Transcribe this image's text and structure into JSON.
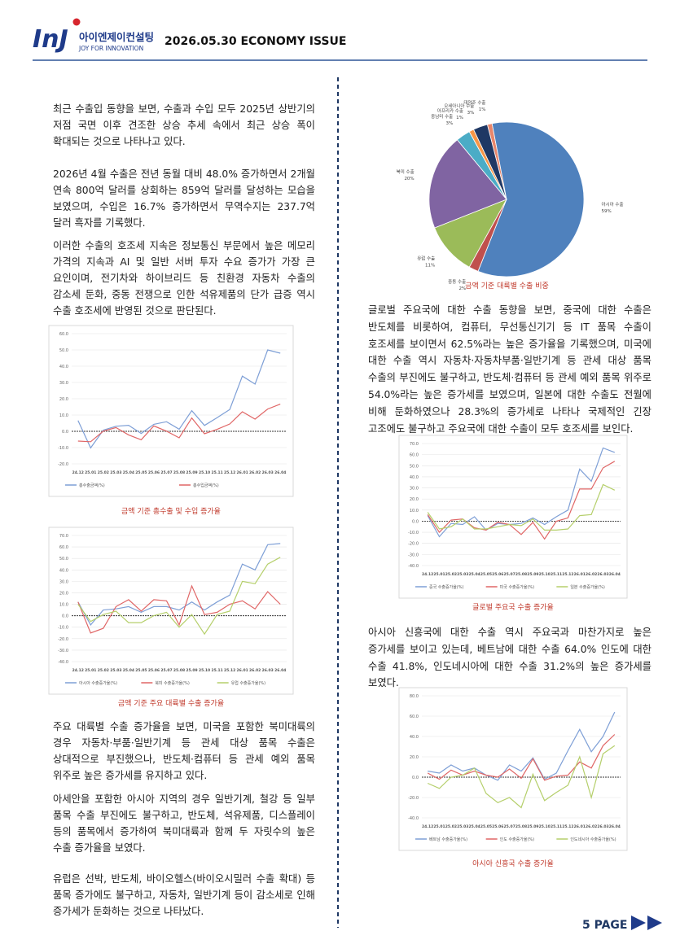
{
  "header": {
    "logo": "InJ",
    "company": "아이엔제이컨설팅",
    "slogan": "JOY FOR INNOVATION",
    "issue": "2026.05.30 ECONOMY ISSUE"
  },
  "left": {
    "paragraphs": [
      "최근 수출입 동향을 보면, 수출과 수입 모두 2025년 상반기의 저점 국면 이후 견조한 상승 추세 속에서 최근 상승 폭이 확대되는 것으로 나타나고 있다.",
      "2026년 4월 수출은 전년 동월 대비 48.0% 증가하면서 2개월 연속 800억 달러를 상회하는 859억 달러를 달성하는 모습을 보였으며, 수입은 16.7% 증가하면서 무역수지는 237.7억 달러 흑자를 기록했다.",
      "이러한 수출의 호조세 지속은 정보통신 부문에서 높은 메모리 가격의 지속과 AI 및 일반 서버 투자 수요 증가가 가장 큰 요인이며, 전기차와 하이브리드 등 친환경 자동차 수출의 감소세 둔화, 중동 전쟁으로 인한 석유제품의 단가 급증 역시 수출 호조세에 반영된 것으로 판단된다.",
      "주요 대륙별 수출 증가율을 보면, 미국을 포함한 북미대륙의 경우 자동차·부품·일반기계 등 관세 대상 품목 수출은 상대적으로 부진했으나, 반도체·컴퓨터 등 관세 예외 품목 위주로 높은 증가세를 유지하고 있다.",
      "아세안을 포함한 아시아 지역의 경우 일반기계, 철강 등 일부 품목 수출 부진에도 불구하고, 반도체, 석유제품, 디스플레이 등의 품목에서 증가하여 북미대륙과 함께 두 자릿수의 높은 수출 증가율을 보였다.",
      "유럽은 선박, 반도체, 바이오헬스(바이오시밀러 수출 확대) 등 품목 증가에도 불구하고, 자동차, 일반기계 등이 감소세로 인해 증가세가 둔화하는 것으로 나타났다."
    ]
  },
  "right": {
    "paragraphs": [
      "글로벌 주요국에 대한 수출 동향을 보면, 중국에 대한 수출은 반도체를 비롯하여, 컴퓨터, 무선통신기기 등 IT 품목 수출이 호조세를 보이면서 62.5%라는 높은 증가율을 기록했으며, 미국에 대한 수출 역시 자동차·자동차부품·일반기계 등 관세 대상 품목 수출의 부진에도 불구하고, 반도체·컴퓨터 등 관세 예외 품목 위주로 54.0%라는 높은 증가세를 보였으며, 일본에 대한 수출도 전월에 비해 둔화하였으나 28.3%의 증가세로 나타나 국제적인 긴장 고조에도 불구하고 주요국에 대한 수출이 모두 호조세를 보인다.",
      "아시아 신흥국에 대한 수출 역시 주요국과 마찬가지로 높은 증가세를 보이고 있는데, 베트남에 대한 수출 64.0% 인도에 대한 수출 41.8%, 인도네시아에 대한 수출 31.2%의 높은 증가세를 보였다."
    ]
  },
  "chart_data": [
    {
      "type": "line",
      "title": "금액 기준 총수출 및 수입 증가율",
      "categories": [
        "24.12",
        "25.01",
        "25.02",
        "25.03",
        "25.04",
        "25.05",
        "25.06",
        "25.07",
        "25.08",
        "25.09",
        "25.10",
        "25.11",
        "25.12",
        "26.01",
        "26.02",
        "26.03",
        "26.04"
      ],
      "series": [
        {
          "name": "총수출금액(%)",
          "color": "#7e9fd6",
          "values": [
            6.6,
            -10.2,
            0.7,
            3.1,
            3.7,
            -1.3,
            4.3,
            5.9,
            1.3,
            12.7,
            3.6,
            8.4,
            13.4,
            33.9,
            29,
            50,
            48
          ]
        },
        {
          "name": "총수입금액(%)",
          "color": "#e06666",
          "values": [
            -6,
            -6.4,
            0.1,
            2.3,
            -2.2,
            -5.2,
            3.3,
            0.1,
            -4,
            8.2,
            -1.5,
            1.2,
            4.5,
            12,
            7.5,
            13.7,
            16.7
          ]
        }
      ],
      "ylim": [
        -20,
        60
      ],
      "yticks": [
        {
          "value": 60,
          "label": "60.0"
        },
        {
          "value": 50,
          "label": "50.0"
        },
        {
          "value": 40,
          "label": "40.0"
        },
        {
          "value": 30,
          "label": "30.0"
        },
        {
          "value": 20,
          "label": "20.0"
        },
        {
          "value": 10,
          "label": "10.0"
        },
        {
          "value": 0,
          "label": "0.0"
        },
        {
          "value": -10,
          "label": "-10.0"
        },
        {
          "value": -20,
          "label": "-20.0"
        }
      ],
      "grid": true
    },
    {
      "type": "line",
      "title": "금액 기준 주요 대륙별 수출 증가율",
      "categories": [
        "24.12",
        "25.01",
        "25.02",
        "25.03",
        "25.04",
        "25.05",
        "25.06",
        "25.07",
        "25.08",
        "25.09",
        "25.10",
        "25.11",
        "25.12",
        "26.01",
        "26.02",
        "26.03",
        "26.04"
      ],
      "series": [
        {
          "name": "아시아 수출증가율(%)",
          "color": "#7e9fd6",
          "values": [
            12,
            -8,
            5,
            6,
            8,
            3,
            8,
            8,
            5,
            12,
            5,
            12,
            18,
            45,
            40,
            62,
            63
          ]
        },
        {
          "name": "북미 수출증가율(%)",
          "color": "#e06666",
          "values": [
            12,
            -15,
            -11,
            8,
            14,
            4,
            14,
            13,
            -8,
            26,
            1,
            3,
            10,
            13,
            6,
            21,
            10
          ]
        },
        {
          "name": "유럽 수출증가율(%)",
          "color": "#b5cf6b",
          "values": [
            10,
            -5,
            1,
            4,
            -6,
            -6,
            0,
            3,
            -10,
            1,
            -16,
            1,
            4,
            30,
            28,
            45,
            51
          ]
        }
      ],
      "ylim": [
        -40,
        70
      ],
      "yticks": [
        {
          "value": 70,
          "label": "70.0"
        },
        {
          "value": 60,
          "label": "60.0"
        },
        {
          "value": 50,
          "label": "50.0"
        },
        {
          "value": 40,
          "label": "40.0"
        },
        {
          "value": 30,
          "label": "30.0"
        },
        {
          "value": 20,
          "label": "20.0"
        },
        {
          "value": 10,
          "label": "10.0"
        },
        {
          "value": 0,
          "label": "0.0"
        },
        {
          "value": -10,
          "label": "-10.0"
        },
        {
          "value": -20,
          "label": "-20.0"
        },
        {
          "value": -30,
          "label": "-30.0"
        },
        {
          "value": -40,
          "label": "-40.0"
        }
      ],
      "grid": true
    },
    {
      "type": "pie",
      "title": "금액 기준 대륙별 수출 비중",
      "categories": [
        "대양주 수출",
        "아시아 수출",
        "중동 수출",
        "유럽 수출",
        "북미 수출",
        "중남미 수출",
        "아프리카 수출",
        "오세아니아 수출"
      ],
      "values": [
        1,
        59,
        2,
        11,
        20,
        3,
        1,
        3
      ],
      "value_labels": [
        "1%",
        "59%",
        "2%",
        "11%",
        "20%",
        "3%",
        "1%",
        "3%"
      ],
      "colors": [
        "#e8866b",
        "#4f81bd",
        "#c0504d",
        "#9bbb59",
        "#8064a2",
        "#4bacc6",
        "#f79646",
        "#1f3864"
      ]
    },
    {
      "type": "line",
      "title": "글로벌 주요국 수출 증가율",
      "categories": [
        "24.12",
        "25.01",
        "25.02",
        "25.03",
        "25.04",
        "25.05",
        "25.06",
        "25.07",
        "25.08",
        "25.09",
        "25.10",
        "25.11",
        "25.12",
        "26.01",
        "26.02",
        "26.03",
        "26.04"
      ],
      "series": [
        {
          "name": "중국 수출증가율(%)",
          "color": "#7e9fd6",
          "values": [
            5,
            -14,
            -2,
            -3,
            4,
            -8,
            -2,
            -3,
            -2,
            3,
            -3,
            4,
            10,
            47,
            36,
            66,
            62
          ]
        },
        {
          "name": "미국 수출증가율(%)",
          "color": "#e06666",
          "values": [
            6,
            -10,
            1,
            2,
            -6,
            -8,
            -1,
            -3,
            -12,
            -1,
            -16,
            0,
            3,
            29,
            29,
            48,
            54
          ]
        },
        {
          "name": "일본 수출증가율(%)",
          "color": "#b5cf6b",
          "values": [
            8,
            -7,
            -5,
            2,
            -7,
            -7,
            -5,
            -3,
            -4,
            2,
            -8,
            -8,
            -7,
            5,
            6,
            33,
            28
          ]
        }
      ],
      "ylim": [
        -40,
        70
      ],
      "yticks": [
        {
          "value": 70,
          "label": "70.0"
        },
        {
          "value": 60,
          "label": "60.0"
        },
        {
          "value": 50,
          "label": "50.0"
        },
        {
          "value": 40,
          "label": "40.0"
        },
        {
          "value": 30,
          "label": "30.0"
        },
        {
          "value": 20,
          "label": "20.0"
        },
        {
          "value": 10,
          "label": "10.0"
        },
        {
          "value": 0,
          "label": "0.0"
        },
        {
          "value": -10,
          "label": "-10.0"
        },
        {
          "value": -20,
          "label": "-20.0"
        },
        {
          "value": -30,
          "label": "-30.0"
        },
        {
          "value": -40,
          "label": "-40.0"
        }
      ],
      "grid": true
    },
    {
      "type": "line",
      "title": "아시아 신흥국 수출 증가율",
      "categories": [
        "24.12",
        "25.01",
        "25.02",
        "25.03",
        "25.04",
        "25.05",
        "25.06",
        "25.07",
        "25.08",
        "25.09",
        "25.10",
        "25.11",
        "25.12",
        "26.01",
        "26.02",
        "26.03",
        "26.04"
      ],
      "series": [
        {
          "name": "베트남 수출증가율(%)",
          "color": "#7e9fd6",
          "values": [
            6,
            4,
            12,
            6,
            9,
            2,
            -3,
            12,
            6,
            19,
            -2,
            4,
            26,
            47,
            25,
            40,
            64
          ]
        },
        {
          "name": "인도 수출증가율(%)",
          "color": "#e06666",
          "values": [
            4,
            -2,
            7,
            2,
            6,
            2,
            0,
            8,
            -1,
            18,
            -3,
            1,
            2,
            15,
            9,
            31,
            42
          ]
        },
        {
          "name": "인도네시아 수출증가율(%)",
          "color": "#b5cf6b",
          "values": [
            -6,
            -11,
            0,
            2,
            9,
            -16,
            -25,
            -20,
            -30,
            3,
            -23,
            -15,
            -8,
            20,
            -20,
            23,
            31
          ]
        }
      ],
      "ylim": [
        -40,
        80
      ],
      "yticks": [
        {
          "value": 80,
          "label": "80.0"
        },
        {
          "value": 60,
          "label": "60.0"
        },
        {
          "value": 40,
          "label": "40.0"
        },
        {
          "value": 20,
          "label": "20.0"
        },
        {
          "value": 0,
          "label": "0.0"
        },
        {
          "value": -20,
          "label": "-20.0"
        },
        {
          "value": -40,
          "label": "-40.0"
        }
      ],
      "grid": true
    }
  ],
  "footer": {
    "page": "5 PAGE"
  }
}
